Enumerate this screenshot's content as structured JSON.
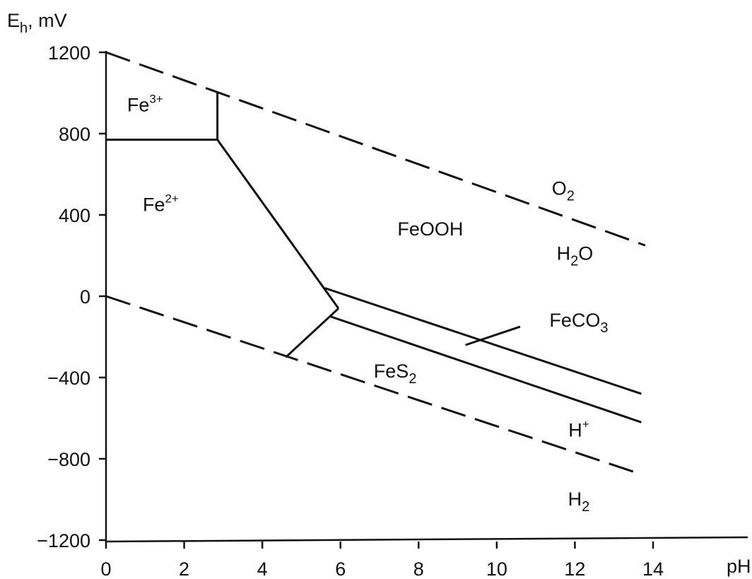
{
  "chart_data": {
    "type": "line",
    "title": "",
    "xlabel": "pH",
    "ylabel": "E",
    "ylabel_sub": "h",
    "ylabel_unit": ", mV",
    "xlim": [
      0,
      16
    ],
    "ylim": [
      -1200,
      1200
    ],
    "x_ticks": [
      0,
      2,
      4,
      6,
      8,
      10,
      12,
      14
    ],
    "x_tick_labels": [
      "0",
      "2",
      "4",
      "6",
      "8",
      "10",
      "12",
      "14"
    ],
    "y_ticks": [
      1200,
      800,
      400,
      0,
      -400,
      -800,
      -1200
    ],
    "y_tick_labels": [
      "1200",
      "800",
      "400",
      "0",
      "−400",
      "−800",
      "−1200"
    ],
    "grid": false,
    "series": [
      {
        "style": "dashed",
        "points": [
          [
            0,
            1200
          ],
          [
            13.8,
            250
          ]
        ]
      },
      {
        "style": "dashed",
        "points": [
          [
            0,
            0
          ],
          [
            13.6,
            -870
          ]
        ]
      },
      {
        "style": "solid",
        "points": [
          [
            0,
            770
          ],
          [
            2.85,
            770
          ]
        ]
      },
      {
        "style": "solid",
        "points": [
          [
            2.85,
            1000
          ],
          [
            2.85,
            770
          ]
        ]
      },
      {
        "style": "solid",
        "points": [
          [
            2.85,
            770
          ],
          [
            5.95,
            -60
          ]
        ]
      },
      {
        "style": "solid",
        "points": [
          [
            5.95,
            -60
          ],
          [
            4.6,
            -300
          ]
        ]
      },
      {
        "style": "solid",
        "points": [
          [
            5.6,
            40
          ],
          [
            13.7,
            -480
          ]
        ]
      },
      {
        "style": "solid",
        "points": [
          [
            5.75,
            -100
          ],
          [
            13.7,
            -620
          ]
        ]
      },
      {
        "style": "solid",
        "points": [
          [
            9.2,
            -240
          ],
          [
            10.6,
            -150
          ]
        ]
      }
    ],
    "annotations": [
      {
        "base": "Fe",
        "sup": "3+",
        "sub": "",
        "tail": "",
        "x": 1.0,
        "y": 910
      },
      {
        "base": "Fe",
        "sup": "2+",
        "sub": "",
        "tail": "",
        "x": 1.4,
        "y": 420
      },
      {
        "base": "FeOOH",
        "sup": "",
        "sub": "",
        "tail": "",
        "x": 8.3,
        "y": 300
      },
      {
        "base": "O",
        "sup": "",
        "sub": "2",
        "tail": "",
        "x": 11.7,
        "y": 500
      },
      {
        "base": "H",
        "sup": "",
        "sub": "2",
        "tail": "O",
        "x": 12.0,
        "y": 180
      },
      {
        "base": "FeCO",
        "sup": "",
        "sub": "3",
        "tail": "",
        "x": 12.1,
        "y": -150
      },
      {
        "base": "FeS",
        "sup": "",
        "sub": "2",
        "tail": "",
        "x": 7.4,
        "y": -400
      },
      {
        "base": "H",
        "sup": "+",
        "sub": "",
        "tail": "",
        "x": 12.1,
        "y": -690
      },
      {
        "base": "H",
        "sup": "",
        "sub": "2",
        "tail": "",
        "x": 12.1,
        "y": -1030
      }
    ]
  }
}
